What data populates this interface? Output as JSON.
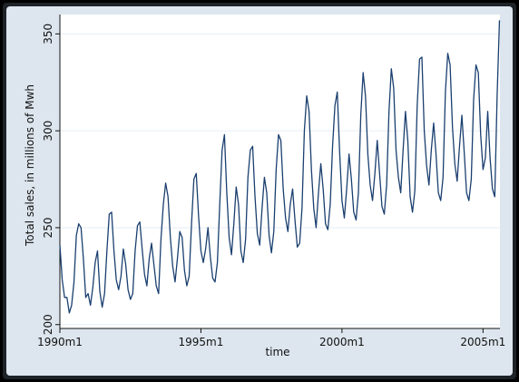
{
  "chart_data": {
    "type": "line",
    "title": "",
    "xlabel": "time",
    "ylabel": "Total sales, in millions of Mwh",
    "x_start": "1990m1",
    "x_end": "2005m8",
    "xlim": [
      1990.0,
      2005.6
    ],
    "ylim": [
      198,
      360
    ],
    "grid": "horizontal",
    "legend": "none",
    "x_ticks": [
      {
        "value": 1990,
        "label": "1990m1"
      },
      {
        "value": 1995,
        "label": "1995m1"
      },
      {
        "value": 2000,
        "label": "2000m1"
      },
      {
        "value": 2005,
        "label": "2005m1"
      }
    ],
    "y_ticks": [
      {
        "value": 200,
        "label": "200"
      },
      {
        "value": 250,
        "label": "250"
      },
      {
        "value": 300,
        "label": "300"
      },
      {
        "value": 350,
        "label": "350"
      }
    ],
    "colors": {
      "line": "#1a3f6f",
      "plot_background": "#ffffff",
      "grid": "#e6eef5",
      "frame": "#1e2328",
      "figure_background": "#dde6ee"
    },
    "series": [
      {
        "values": [
          241,
          223,
          214,
          214,
          206,
          210,
          222,
          246,
          252,
          250,
          234,
          214,
          216,
          210,
          219,
          232,
          238,
          217,
          209,
          216,
          238,
          257,
          258,
          238,
          223,
          218,
          225,
          239,
          231,
          218,
          213,
          216,
          238,
          251,
          253,
          239,
          226,
          220,
          234,
          242,
          231,
          220,
          216,
          244,
          262,
          273,
          266,
          245,
          230,
          222,
          234,
          248,
          245,
          228,
          220,
          225,
          252,
          275,
          278,
          256,
          238,
          232,
          239,
          250,
          235,
          224,
          222,
          232,
          262,
          290,
          298,
          268,
          245,
          236,
          252,
          271,
          262,
          238,
          232,
          244,
          276,
          290,
          292,
          266,
          247,
          241,
          260,
          276,
          268,
          246,
          237,
          248,
          280,
          298,
          295,
          270,
          255,
          248,
          262,
          270,
          254,
          240,
          242,
          260,
          300,
          318,
          310,
          280,
          260,
          250,
          268,
          283,
          270,
          252,
          249,
          262,
          292,
          313,
          320,
          289,
          264,
          255,
          270,
          288,
          275,
          258,
          254,
          268,
          308,
          330,
          318,
          288,
          272,
          264,
          278,
          295,
          278,
          261,
          257,
          272,
          310,
          332,
          322,
          290,
          276,
          268,
          290,
          310,
          295,
          266,
          258,
          269,
          313,
          337,
          338,
          300,
          282,
          272,
          290,
          304,
          288,
          268,
          264,
          276,
          320,
          340,
          334,
          302,
          283,
          274,
          292,
          308,
          289,
          268,
          264,
          275,
          316,
          334,
          330,
          298,
          280,
          286,
          310,
          286,
          270,
          266,
          318,
          357
        ]
      }
    ]
  }
}
